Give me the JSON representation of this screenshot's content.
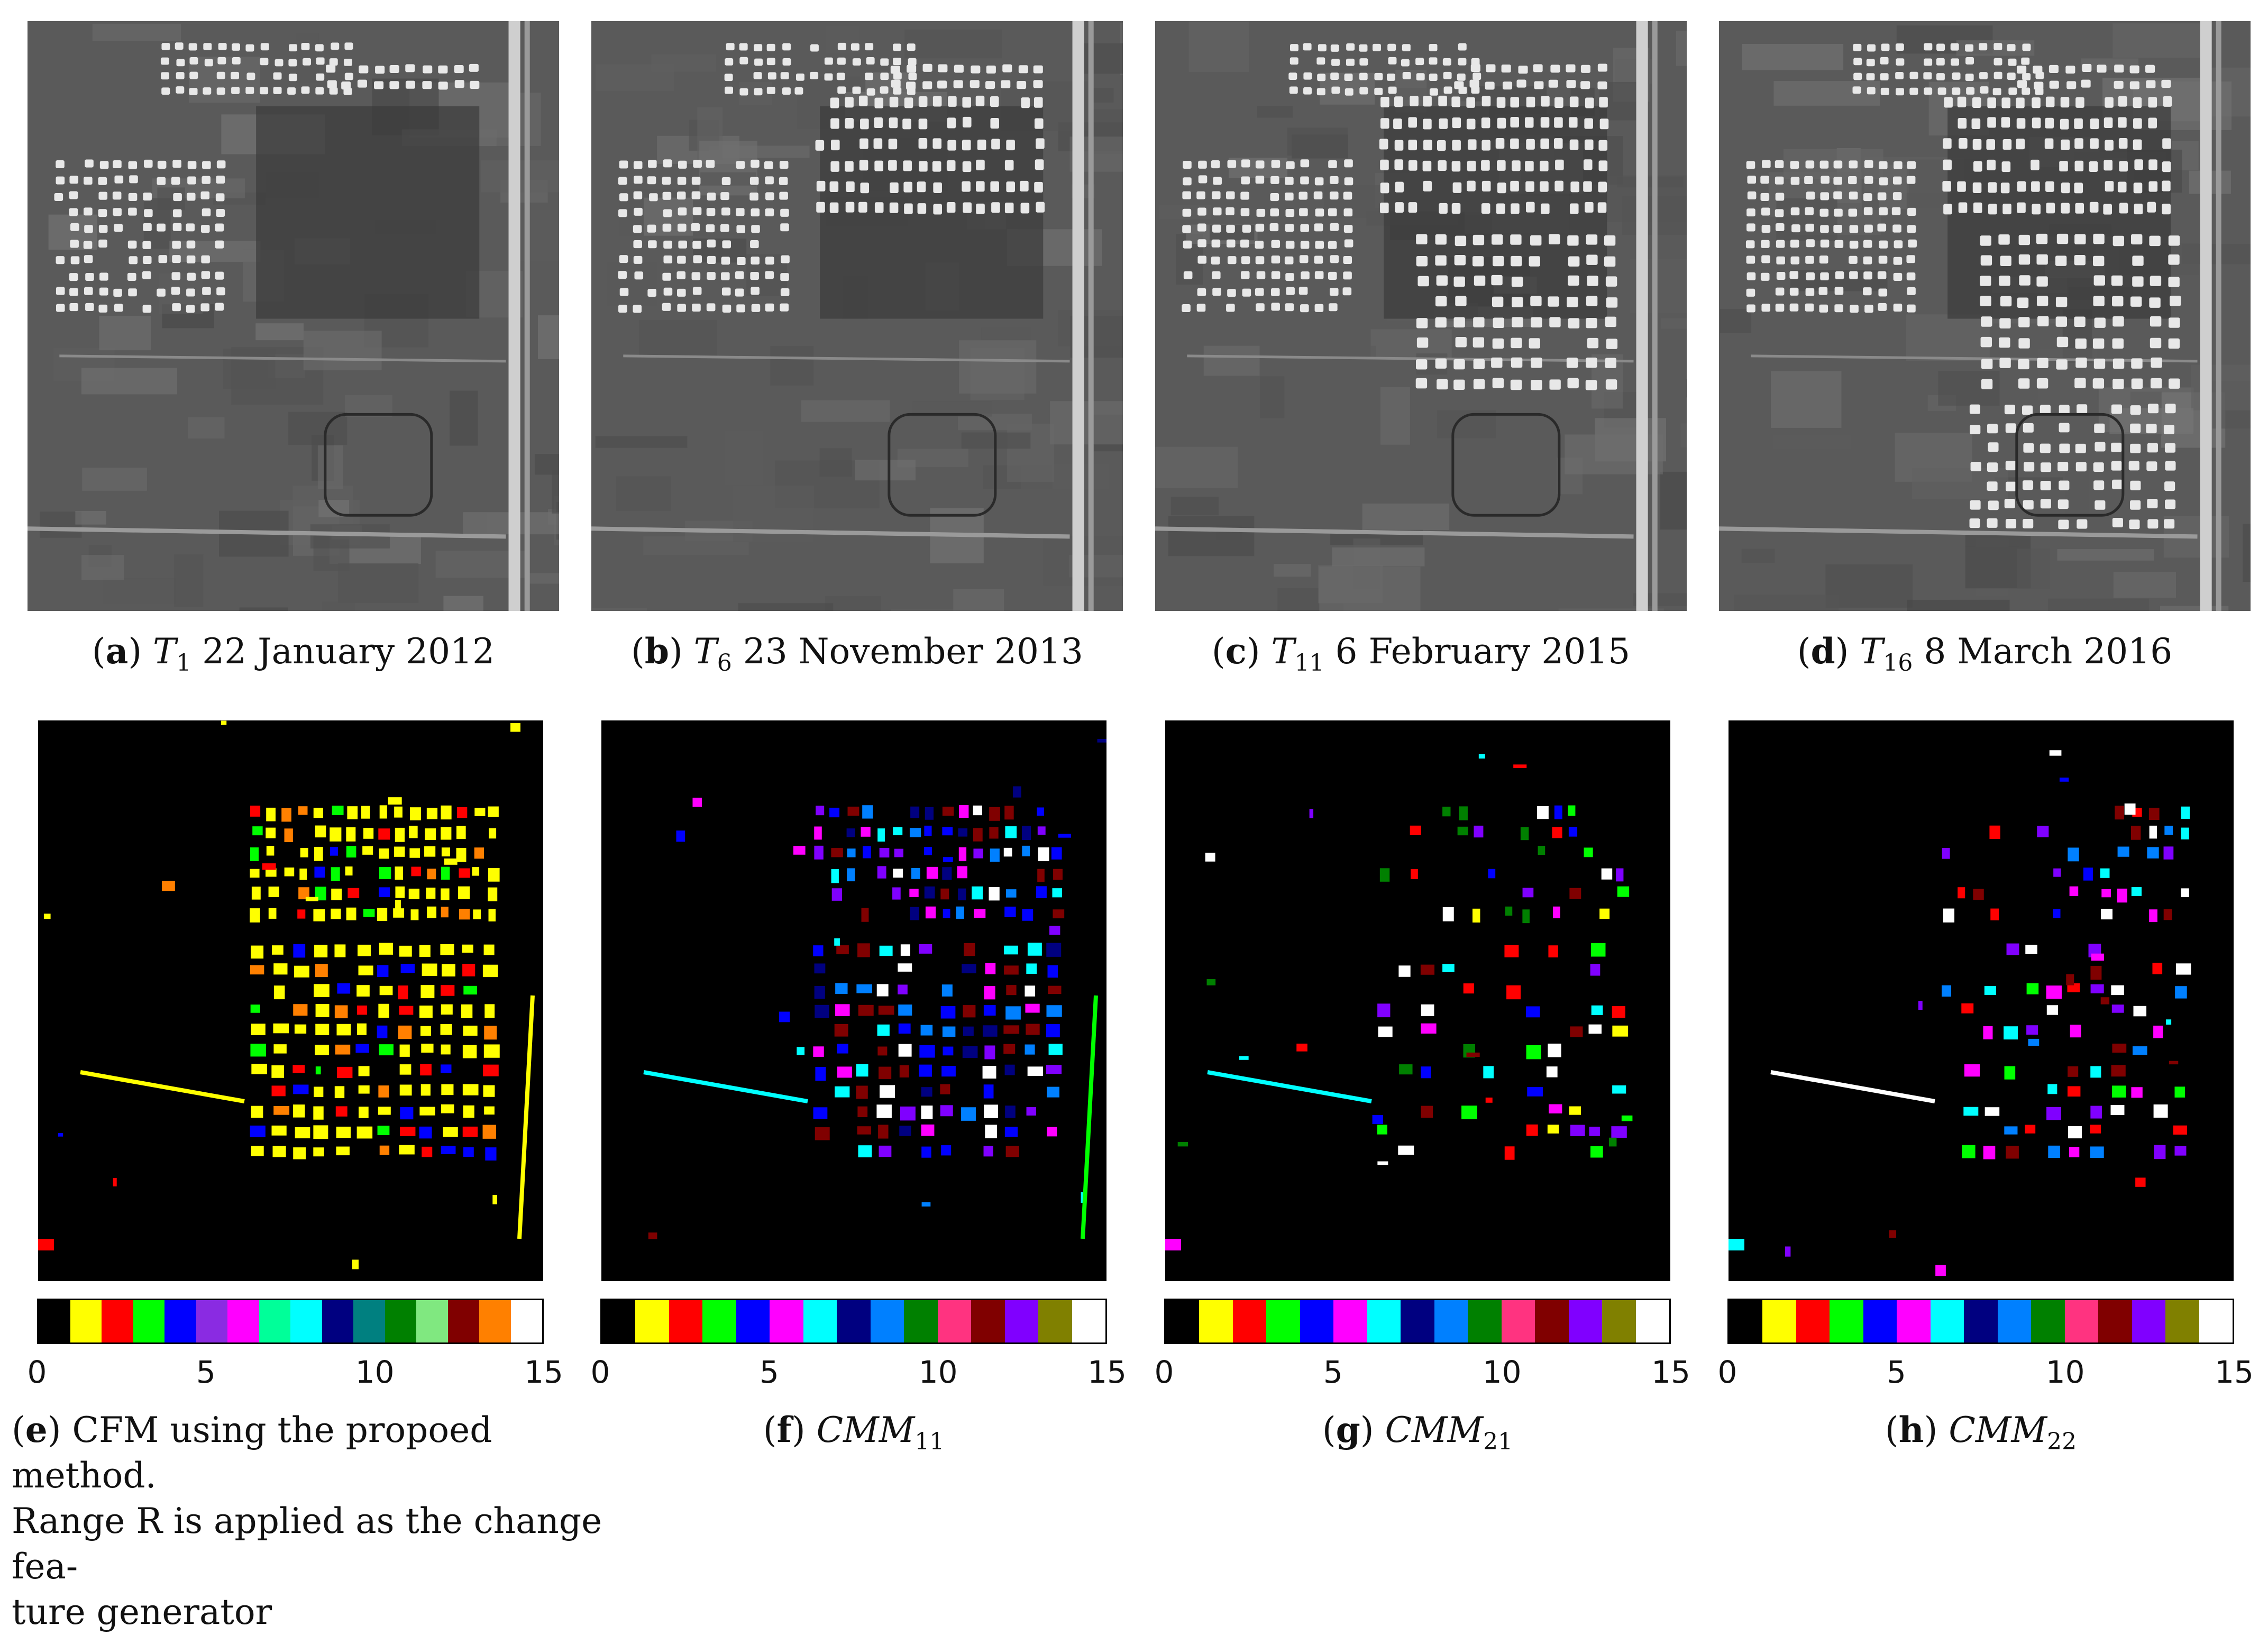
{
  "top_panels": [
    {
      "label": "a",
      "tag": "T",
      "sub": "1",
      "date": "22 January 2012",
      "stage": 0
    },
    {
      "label": "b",
      "tag": "T",
      "sub": "6",
      "date": "23 November 2013",
      "stage": 1
    },
    {
      "label": "c",
      "tag": "T",
      "sub": "11",
      "date": "6 February 2015",
      "stage": 2
    },
    {
      "label": "d",
      "tag": "T",
      "sub": "16",
      "date": "8 March 2016",
      "stage": 3
    }
  ],
  "bottom_panels": [
    {
      "label": "e",
      "caption_text": "CFM using the propoed method.\nRange R is applied as the change fea-\nture generator",
      "colorbar": [
        "#000000",
        "#ffff00",
        "#ff0000",
        "#00ff00",
        "#0000ff",
        "#8a2be2",
        "#ff00ff",
        "#00ff99",
        "#00ffff",
        "#000080",
        "#008080",
        "#008000",
        "#80e880",
        "#800000",
        "#ff8000",
        "#ffffff"
      ],
      "palette_weights": {
        "yellow": 0.7,
        "red": 0.1,
        "green": 0.1,
        "blue": 0.1
      }
    },
    {
      "label": "f",
      "tag": "CMM",
      "sub": "11",
      "colorbar": [
        "#000000",
        "#ffff00",
        "#ff0000",
        "#00ff00",
        "#0000ff",
        "#ff00ff",
        "#00ffff",
        "#000080",
        "#0080ff",
        "#008000",
        "#ff3380",
        "#800000",
        "#8000ff",
        "#808000",
        "#ffffff"
      ]
    },
    {
      "label": "g",
      "tag": "CMM",
      "sub": "21",
      "colorbar": [
        "#000000",
        "#ffff00",
        "#ff0000",
        "#00ff00",
        "#0000ff",
        "#ff00ff",
        "#00ffff",
        "#000080",
        "#0080ff",
        "#008000",
        "#ff3380",
        "#800000",
        "#8000ff",
        "#808000",
        "#ffffff"
      ]
    },
    {
      "label": "h",
      "tag": "CMM",
      "sub": "22",
      "colorbar": [
        "#000000",
        "#ffff00",
        "#ff0000",
        "#00ff00",
        "#0000ff",
        "#ff00ff",
        "#00ffff",
        "#000080",
        "#0080ff",
        "#008000",
        "#ff3380",
        "#800000",
        "#8000ff",
        "#808000",
        "#ffffff"
      ]
    }
  ],
  "colorbar_ticks": [
    "0",
    "5",
    "10",
    "15"
  ]
}
